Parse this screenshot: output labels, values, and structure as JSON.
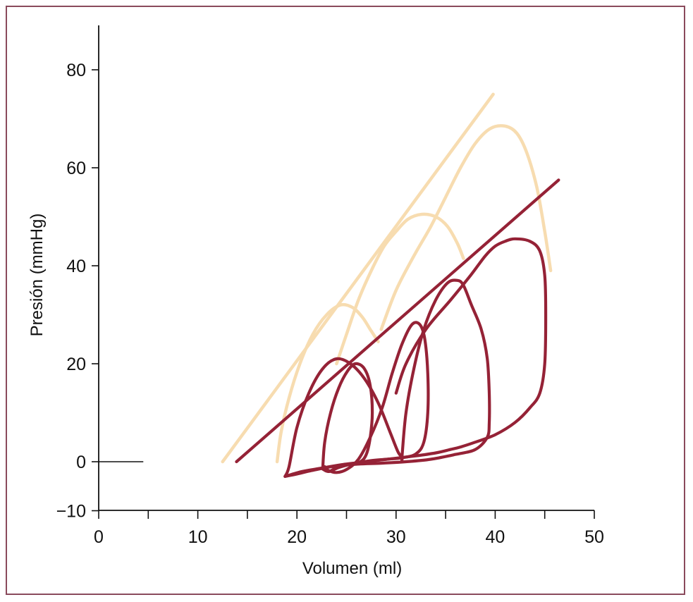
{
  "chart_data": {
    "type": "line",
    "title": "",
    "xlabel": "Volumen (ml)",
    "ylabel": "Presión (mmHg)",
    "xlim": [
      0,
      50
    ],
    "ylim": [
      -10,
      90
    ],
    "x_ticks": [
      0,
      10,
      20,
      30,
      40,
      50
    ],
    "y_ticks": [
      -10,
      0,
      20,
      40,
      60,
      80
    ],
    "y_tick_labels": [
      "−10",
      "0",
      "20",
      "40",
      "60",
      "80"
    ],
    "grid": false,
    "legend": "none",
    "colors": {
      "light": "#f7dcb0",
      "dark": "#952236"
    },
    "zero_line": {
      "x": [
        0,
        4.5
      ],
      "y": 0
    },
    "series": [
      {
        "style": "light",
        "kind": "line",
        "x": [
          12.5,
          39.8
        ],
        "y": [
          0,
          75
        ]
      },
      {
        "style": "light",
        "kind": "curve",
        "x": [
          18.0,
          18.4,
          19.2,
          20.3,
          21.6,
          23.0,
          24.4,
          25.6,
          26.6,
          27.4,
          28.2
        ],
        "y": [
          0,
          6,
          13,
          20,
          26,
          30,
          32,
          31.5,
          29.5,
          27,
          24.5
        ]
      },
      {
        "style": "light",
        "kind": "curve",
        "x": [
          24.0,
          25.0,
          26.2,
          27.5,
          28.8,
          30.0,
          31.2,
          32.6,
          34.0,
          35.2,
          36.2,
          36.8
        ],
        "y": [
          20,
          26,
          33,
          39,
          44,
          47,
          49.5,
          50.5,
          50,
          48,
          44.5,
          41.5
        ]
      },
      {
        "style": "light",
        "kind": "curve",
        "x": [
          28.5,
          30.0,
          31.8,
          33.5,
          35.0,
          36.5,
          38.0,
          39.5,
          41.0,
          42.2,
          43.2,
          44.2,
          45.0,
          45.6
        ],
        "y": [
          27,
          35,
          42,
          48,
          54,
          60,
          65,
          68,
          68.5,
          67,
          63,
          56,
          47,
          39
        ]
      },
      {
        "style": "dark",
        "kind": "line",
        "x": [
          13.9,
          46.4
        ],
        "y": [
          0,
          57.5
        ]
      },
      {
        "style": "dark",
        "kind": "loop",
        "x": [
          22.6,
          22.8,
          23.4,
          24.2,
          25.1,
          25.9,
          26.8,
          27.4,
          27.6,
          27.4,
          27.0,
          26.4,
          25.4,
          24.2,
          23.2,
          22.6
        ],
        "y": [
          -1.5,
          4,
          10,
          15,
          18.5,
          20,
          19,
          15.5,
          10,
          5,
          1.5,
          0,
          -0.5,
          -1.2,
          -2,
          -1.5
        ]
      },
      {
        "style": "dark",
        "kind": "loop",
        "x": [
          22.8,
          23.2,
          24.0,
          25.0,
          26.2,
          27.4,
          28.6,
          29.6,
          30.6,
          31.6,
          32.4,
          32.9,
          33.2,
          33.2,
          32.8,
          32.0,
          30.6,
          29.0,
          27.4,
          25.6,
          24.2,
          23.2,
          22.8
        ],
        "y": [
          -1,
          -1.8,
          -2.2,
          -1.6,
          0.5,
          5,
          11,
          18,
          24,
          28,
          28,
          25,
          18,
          10,
          4,
          1.6,
          0.8,
          0.5,
          0.2,
          -0.4,
          -1,
          -2,
          -1
        ]
      },
      {
        "style": "dark",
        "kind": "loop",
        "x": [
          18.8,
          19.2,
          20.0,
          21.2,
          22.6,
          24.0,
          25.4,
          26.8,
          28.2,
          29.4,
          30.2,
          30.6,
          30.6,
          31.0,
          31.8,
          32.8,
          34.0,
          35.2,
          36.2,
          36.8,
          37.6,
          38.6,
          39.2,
          39.4,
          39.4,
          39.2,
          38.0,
          36.0,
          33.5,
          31.0,
          28.5,
          26.0,
          23.5,
          21.5,
          20.0,
          18.8
        ],
        "y": [
          -3,
          -1,
          7,
          14,
          19,
          21,
          20,
          17,
          12,
          6,
          2,
          1,
          1,
          10,
          19,
          27,
          33,
          36.5,
          37,
          36,
          32,
          27,
          21,
          14,
          8,
          5,
          2.5,
          1.5,
          0.5,
          0,
          -0.3,
          -0.5,
          -1,
          -1.8,
          -2.5,
          -3
        ]
      },
      {
        "style": "dark",
        "kind": "loop",
        "x": [
          18.8,
          20.5,
          22.5,
          24.5,
          27.0,
          29.5,
          32.0,
          34.0,
          35.5,
          36.5,
          38.0,
          40.0,
          42.0,
          43.5,
          44.5,
          45.0,
          45.1,
          45.0,
          44.5,
          43.5,
          42.0,
          41.0,
          40.0,
          39.0,
          37.5,
          35.5,
          33.0,
          31.0,
          30.0
        ],
        "y": [
          -3,
          -2,
          -1.3,
          -0.6,
          0,
          0.6,
          1.2,
          1.8,
          2.5,
          3,
          4,
          5.5,
          8,
          11,
          14,
          20,
          30,
          38,
          43,
          45,
          45.5,
          45,
          44,
          42,
          38,
          33,
          27,
          20,
          14
        ]
      }
    ]
  }
}
